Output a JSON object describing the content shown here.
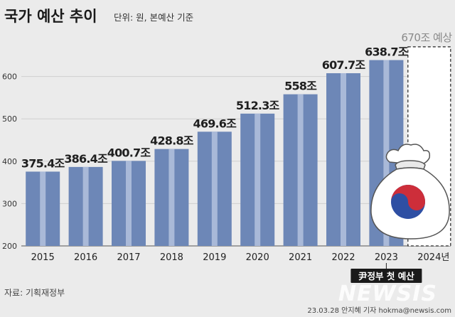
{
  "chart_data": {
    "type": "bar",
    "title": "국가 예산 추이",
    "subtitle": "단위: 원, 본예산 기준",
    "categories": [
      "2015",
      "2016",
      "2017",
      "2018",
      "2019",
      "2020",
      "2021",
      "2022",
      "2023"
    ],
    "values": [
      375.4,
      386.4,
      400.7,
      428.8,
      469.6,
      512.3,
      558,
      607.7,
      638.7
    ],
    "value_labels": [
      "375.4조",
      "386.4조",
      "400.7조",
      "428.8조",
      "469.6조",
      "512.3조",
      "558조",
      "607.7조",
      "638.7조"
    ],
    "yticks": [
      200,
      300,
      400,
      500,
      600
    ],
    "ylim": [
      200,
      700
    ],
    "grid": true,
    "projection": {
      "category": "2024년",
      "value": 670,
      "label": "670조 예상",
      "style": "dashed-outline"
    },
    "annotation": "尹정부 첫 예산",
    "colors": {
      "bar": "#6d87b7",
      "bar_highlight": "#a9b9d8",
      "grid": "#cfcfcf",
      "background": "#ebebeb",
      "annotation_bg": "#1a1a1a"
    }
  },
  "footer": {
    "source": "자료: 기획재정부",
    "credit": "23.03.28 안지혜 기자 hokma@newsis.com",
    "watermark": "NEWSIS"
  }
}
